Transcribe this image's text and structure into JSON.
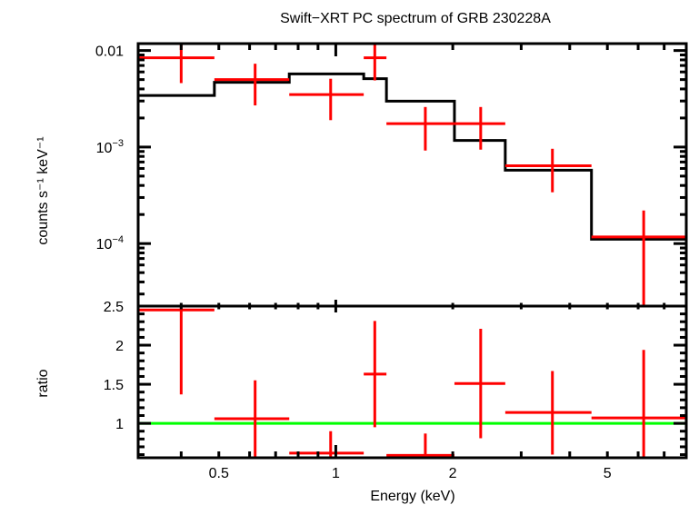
{
  "chart_data": [
    {
      "type": "scatter",
      "panel": "spectrum",
      "title": "Swift−XRT PC spectrum of GRB 230228A",
      "xlabel": "Energy (keV)",
      "ylabel": "counts s⁻¹ keV⁻¹",
      "xscale": "log",
      "yscale": "log",
      "xlim": [
        0.31,
        7.98
      ],
      "ylim": [
        2.25e-05,
        0.0118
      ],
      "ytick_labels": [
        {
          "value": 0.01,
          "label": "0.01",
          "exp": ""
        },
        {
          "value": 0.001,
          "label": "10",
          "exp": "−3"
        },
        {
          "value": 0.0001,
          "label": "10",
          "exp": "−4"
        }
      ],
      "series": [
        {
          "name": "data",
          "color": "#ff0000",
          "points": [
            {
              "x": 0.4,
              "xlo": 0.31,
              "xhi": 0.487,
              "y": 0.0084,
              "ylo": 0.0046,
              "yhi": 0.0123
            },
            {
              "x": 0.62,
              "xlo": 0.487,
              "xhi": 0.759,
              "y": 0.005,
              "ylo": 0.0027,
              "yhi": 0.0073
            },
            {
              "x": 0.97,
              "xlo": 0.759,
              "xhi": 1.18,
              "y": 0.0035,
              "ylo": 0.0019,
              "yhi": 0.0051
            },
            {
              "x": 1.26,
              "xlo": 1.18,
              "xhi": 1.35,
              "y": 0.0084,
              "ylo": 0.0049,
              "yhi": 0.012
            },
            {
              "x": 1.7,
              "xlo": 1.35,
              "xhi": 2.02,
              "y": 0.00175,
              "ylo": 0.00092,
              "yhi": 0.0026
            },
            {
              "x": 2.36,
              "xlo": 2.02,
              "xhi": 2.73,
              "y": 0.00175,
              "ylo": 0.00094,
              "yhi": 0.0026
            },
            {
              "x": 3.61,
              "xlo": 2.73,
              "xhi": 4.55,
              "y": 0.00064,
              "ylo": 0.00034,
              "yhi": 0.00096
            },
            {
              "x": 6.2,
              "xlo": 4.55,
              "xhi": 7.98,
              "y": 0.000117,
              "ylo": 1e-05,
              "yhi": 0.00022
            }
          ]
        },
        {
          "name": "model",
          "color": "#000000",
          "steps": [
            {
              "xlo": 0.31,
              "xhi": 0.487,
              "y": 0.00342
            },
            {
              "xlo": 0.487,
              "xhi": 0.759,
              "y": 0.00468
            },
            {
              "xlo": 0.759,
              "xhi": 1.18,
              "y": 0.00572
            },
            {
              "xlo": 1.18,
              "xhi": 1.35,
              "y": 0.00511
            },
            {
              "xlo": 1.35,
              "xhi": 2.02,
              "y": 0.00299
            },
            {
              "xlo": 2.02,
              "xhi": 2.73,
              "y": 0.00117
            },
            {
              "xlo": 2.73,
              "xhi": 4.55,
              "y": 0.000576
            },
            {
              "xlo": 4.55,
              "xhi": 7.98,
              "y": 0.000111
            }
          ]
        }
      ]
    },
    {
      "type": "scatter",
      "panel": "ratio",
      "xlabel": "Energy (keV)",
      "ylabel": "ratio",
      "xscale": "log",
      "yscale": "linear",
      "xlim": [
        0.31,
        7.98
      ],
      "ylim": [
        0.56,
        2.5
      ],
      "xtick_labels": [
        {
          "value": 0.5,
          "label": "0.5"
        },
        {
          "value": 1,
          "label": "1"
        },
        {
          "value": 2,
          "label": "2"
        },
        {
          "value": 5,
          "label": "5"
        }
      ],
      "ytick_labels": [
        {
          "value": 2.5,
          "label": "2.5"
        },
        {
          "value": 2,
          "label": "2"
        },
        {
          "value": 1.5,
          "label": "1.5"
        },
        {
          "value": 1,
          "label": "1"
        }
      ],
      "reference_line": {
        "y": 1,
        "color": "#00ff00"
      },
      "series": [
        {
          "name": "ratio",
          "color": "#ff0000",
          "points": [
            {
              "x": 0.4,
              "xlo": 0.31,
              "xhi": 0.487,
              "y": 2.45,
              "ylo": 1.37,
              "yhi": 3.2
            },
            {
              "x": 0.62,
              "xlo": 0.487,
              "xhi": 0.759,
              "y": 1.06,
              "ylo": 0.5,
              "yhi": 1.55
            },
            {
              "x": 0.97,
              "xlo": 0.759,
              "xhi": 1.18,
              "y": 0.62,
              "ylo": 0.5,
              "yhi": 0.9
            },
            {
              "x": 1.26,
              "xlo": 1.18,
              "xhi": 1.35,
              "y": 1.63,
              "ylo": 0.95,
              "yhi": 2.31
            },
            {
              "x": 1.7,
              "xlo": 1.35,
              "xhi": 2.02,
              "y": 0.59,
              "ylo": 0.5,
              "yhi": 0.87
            },
            {
              "x": 2.36,
              "xlo": 2.02,
              "xhi": 2.73,
              "y": 1.51,
              "ylo": 0.81,
              "yhi": 2.21
            },
            {
              "x": 3.61,
              "xlo": 2.73,
              "xhi": 4.55,
              "y": 1.14,
              "ylo": 0.6,
              "yhi": 1.67
            },
            {
              "x": 6.2,
              "xlo": 4.55,
              "xhi": 7.98,
              "y": 1.07,
              "ylo": 0.5,
              "yhi": 1.94
            }
          ]
        }
      ]
    }
  ]
}
